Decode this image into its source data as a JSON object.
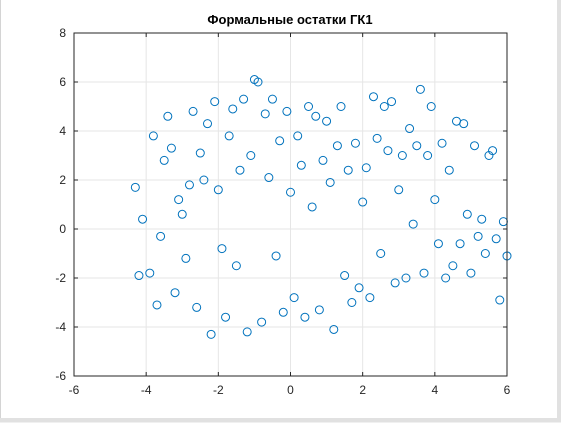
{
  "chart_data": {
    "type": "scatter",
    "title": "Формальные остатки ГК1",
    "xlabel": "",
    "ylabel": "",
    "xlim": [
      -6,
      6
    ],
    "ylim": [
      -6,
      8
    ],
    "xticks": [
      "-6",
      "-4",
      "-2",
      "0",
      "2",
      "4",
      "6"
    ],
    "yticks": [
      "-6",
      "-4",
      "-2",
      "0",
      "2",
      "4",
      "6",
      "8"
    ],
    "grid": true,
    "marker": "circle-open",
    "series_color": "#0072bd",
    "points": [
      [
        -4.3,
        1.7
      ],
      [
        -4.2,
        -1.9
      ],
      [
        -4.1,
        0.4
      ],
      [
        -3.9,
        -1.8
      ],
      [
        -3.8,
        3.8
      ],
      [
        -3.7,
        -3.1
      ],
      [
        -3.6,
        -0.3
      ],
      [
        -3.5,
        2.8
      ],
      [
        -3.4,
        4.6
      ],
      [
        -3.3,
        3.3
      ],
      [
        -3.2,
        -2.6
      ],
      [
        -3.1,
        1.2
      ],
      [
        -3.0,
        0.6
      ],
      [
        -2.9,
        -1.2
      ],
      [
        -2.8,
        1.8
      ],
      [
        -2.7,
        4.8
      ],
      [
        -2.6,
        -3.2
      ],
      [
        -2.5,
        3.1
      ],
      [
        -2.4,
        2.0
      ],
      [
        -2.3,
        4.3
      ],
      [
        -2.2,
        -4.3
      ],
      [
        -2.1,
        5.2
      ],
      [
        -2.0,
        1.6
      ],
      [
        -1.9,
        -0.8
      ],
      [
        -1.8,
        -3.6
      ],
      [
        -1.7,
        3.8
      ],
      [
        -1.6,
        4.9
      ],
      [
        -1.5,
        -1.5
      ],
      [
        -1.4,
        2.4
      ],
      [
        -1.3,
        5.3
      ],
      [
        -1.2,
        -4.2
      ],
      [
        -1.1,
        3.0
      ],
      [
        -1.0,
        6.1
      ],
      [
        -0.9,
        6.0
      ],
      [
        -0.8,
        -3.8
      ],
      [
        -0.7,
        4.7
      ],
      [
        -0.6,
        2.1
      ],
      [
        -0.5,
        5.3
      ],
      [
        -0.4,
        -1.1
      ],
      [
        -0.3,
        3.6
      ],
      [
        -0.2,
        -3.4
      ],
      [
        -0.1,
        4.8
      ],
      [
        0.0,
        1.5
      ],
      [
        0.1,
        -2.8
      ],
      [
        0.2,
        3.8
      ],
      [
        0.3,
        2.6
      ],
      [
        0.4,
        -3.6
      ],
      [
        0.5,
        5.0
      ],
      [
        0.6,
        0.9
      ],
      [
        0.7,
        4.6
      ],
      [
        0.8,
        -3.3
      ],
      [
        0.9,
        2.8
      ],
      [
        1.0,
        4.4
      ],
      [
        1.1,
        1.9
      ],
      [
        1.2,
        -4.1
      ],
      [
        1.3,
        3.4
      ],
      [
        1.4,
        5.0
      ],
      [
        1.5,
        -1.9
      ],
      [
        1.6,
        2.4
      ],
      [
        1.7,
        -3.0
      ],
      [
        1.8,
        3.5
      ],
      [
        1.9,
        -2.4
      ],
      [
        2.0,
        1.1
      ],
      [
        2.1,
        2.5
      ],
      [
        2.2,
        -2.8
      ],
      [
        2.3,
        5.4
      ],
      [
        2.4,
        3.7
      ],
      [
        2.5,
        -1.0
      ],
      [
        2.6,
        5.0
      ],
      [
        2.7,
        3.2
      ],
      [
        2.8,
        5.2
      ],
      [
        2.9,
        -2.2
      ],
      [
        3.0,
        1.6
      ],
      [
        3.1,
        3.0
      ],
      [
        3.2,
        -2.0
      ],
      [
        3.3,
        4.1
      ],
      [
        3.4,
        0.2
      ],
      [
        3.5,
        3.4
      ],
      [
        3.6,
        5.7
      ],
      [
        3.7,
        -1.8
      ],
      [
        3.8,
        3.0
      ],
      [
        3.9,
        5.0
      ],
      [
        4.0,
        1.2
      ],
      [
        4.1,
        -0.6
      ],
      [
        4.2,
        3.5
      ],
      [
        4.3,
        -2.0
      ],
      [
        4.4,
        2.4
      ],
      [
        4.5,
        -1.5
      ],
      [
        4.6,
        4.4
      ],
      [
        4.7,
        -0.6
      ],
      [
        4.8,
        4.3
      ],
      [
        4.9,
        0.6
      ],
      [
        5.0,
        -1.8
      ],
      [
        5.1,
        3.4
      ],
      [
        5.2,
        -0.3
      ],
      [
        5.3,
        0.4
      ],
      [
        5.4,
        -1.0
      ],
      [
        5.5,
        3.0
      ],
      [
        5.6,
        3.2
      ],
      [
        5.7,
        -0.4
      ],
      [
        5.8,
        -2.9
      ],
      [
        5.9,
        0.3
      ],
      [
        6.0,
        -1.1
      ]
    ]
  }
}
